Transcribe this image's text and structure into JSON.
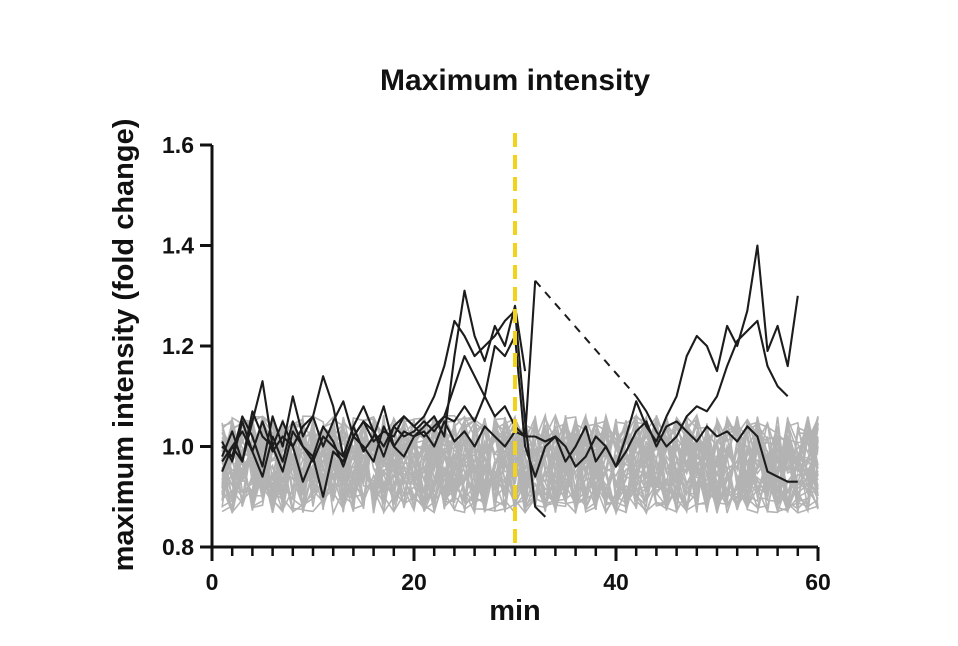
{
  "chart_data": {
    "type": "line",
    "title": "Maximum intensity",
    "xlabel": "min",
    "ylabel": "maximum intensity (fold change)",
    "xlim": [
      0,
      60
    ],
    "ylim": [
      0.8,
      1.6
    ],
    "x_ticks": [
      "0",
      "20",
      "40",
      "60"
    ],
    "y_ticks": [
      "0.8",
      "1.0",
      "1.2",
      "1.4",
      "1.6"
    ],
    "grid": false,
    "legend": "none",
    "colors": {
      "background_traces": "#b3b3b3",
      "highlight_traces": "#1c1c1c",
      "marker": "#f2d21b"
    },
    "vertical_marker": {
      "x": 30,
      "style": "dashed",
      "color": "#f2d21b"
    },
    "background_series": {
      "description": "about 40 gray single-cell traces fluctuating roughly between 0.85 and 1.08 across 1-60 min",
      "count": 40,
      "x_range": [
        1,
        60
      ],
      "value_range": [
        0.85,
        1.08
      ]
    },
    "series": [
      {
        "x": [
          1,
          2,
          3,
          4,
          5,
          6,
          7,
          8,
          9,
          10,
          11,
          12,
          13,
          14,
          15,
          16,
          17,
          18,
          19,
          20,
          21,
          22,
          23,
          24,
          25,
          26,
          27,
          28,
          29,
          30,
          31,
          32,
          33
        ],
        "values": [
          0.95,
          1.0,
          0.97,
          1.05,
          1.13,
          1.0,
          0.95,
          1.03,
          1.0,
          0.97,
          1.02,
          1.0,
          0.98,
          1.04,
          1.08,
          1.03,
          0.98,
          1.04,
          1.06,
          1.04,
          1.06,
          1.1,
          1.16,
          1.25,
          1.22,
          1.18,
          1.2,
          1.22,
          1.25,
          1.27,
          1.05,
          0.88,
          0.86
        ]
      },
      {
        "x": [
          1,
          2,
          3,
          4,
          5,
          6,
          7,
          8,
          9,
          10,
          11,
          12,
          13,
          14,
          15,
          16,
          17,
          18,
          19,
          20,
          21,
          22,
          23,
          24,
          25,
          26,
          27,
          28,
          29,
          30,
          31
        ],
        "values": [
          1.0,
          0.98,
          1.06,
          1.02,
          0.96,
          1.06,
          1.0,
          1.1,
          1.02,
          1.06,
          1.14,
          1.08,
          0.98,
          1.04,
          0.99,
          1.02,
          1.08,
          1.0,
          1.03,
          1.02,
          1.04,
          1.06,
          1.02,
          1.18,
          1.31,
          1.22,
          1.17,
          1.24,
          1.2,
          1.28,
          1.15
        ]
      },
      {
        "x": [
          1,
          2,
          3,
          4,
          5,
          6,
          7,
          8,
          9,
          10,
          11,
          12,
          13,
          14,
          15,
          16,
          17,
          18,
          19,
          20,
          21,
          22,
          23,
          24,
          25,
          26,
          27,
          28,
          29,
          30,
          31,
          32,
          33,
          34,
          35,
          36,
          37,
          38,
          39,
          40,
          41,
          42,
          43,
          44,
          45,
          46,
          47,
          48,
          49,
          50,
          51,
          52,
          53,
          54,
          55,
          56,
          57,
          58
        ],
        "values": [
          0.97,
          1.0,
          1.03,
          0.99,
          1.05,
          0.99,
          1.02,
          1.0,
          1.04,
          1.06,
          1.0,
          1.05,
          1.09,
          1.02,
          1.05,
          1.01,
          1.03,
          1.02,
          1.06,
          1.04,
          1.02,
          1.04,
          1.06,
          1.12,
          1.18,
          1.14,
          1.1,
          1.2,
          1.18,
          1.22,
          1.0,
          0.94,
          1.0,
          1.02,
          0.97,
          1.0,
          1.04,
          0.97,
          1.0,
          0.96,
          1.02,
          1.09,
          1.04,
          1.01,
          1.06,
          1.1,
          1.18,
          1.22,
          1.2,
          1.15,
          1.24,
          1.2,
          1.27,
          1.4,
          1.19,
          1.24,
          1.16,
          1.3
        ]
      },
      {
        "x": [
          1,
          2,
          3,
          4,
          5,
          6,
          7,
          8,
          9,
          10,
          11,
          12,
          13,
          14,
          15,
          16,
          17,
          18,
          19,
          20,
          21,
          22,
          23,
          24,
          25,
          26,
          27,
          28,
          29,
          30,
          31,
          32,
          33,
          34,
          35,
          36,
          37,
          38,
          39,
          40,
          41,
          42,
          43,
          44,
          45,
          46,
          47,
          48,
          49,
          50,
          51,
          52,
          53,
          54,
          55,
          56,
          57
        ],
        "values": [
          0.98,
          1.03,
          0.97,
          1.07,
          1.02,
          1.0,
          1.05,
          1.0,
          0.93,
          0.98,
          0.9,
          0.99,
          0.97,
          1.02,
          1.05,
          1.03,
          1.0,
          1.04,
          1.02,
          1.03,
          1.05,
          1.03,
          1.06,
          1.05,
          1.08,
          1.05,
          1.1,
          1.06,
          1.08,
          1.04,
          1.02,
          1.33,
          null,
          null,
          null,
          null,
          null,
          null,
          null,
          null,
          null,
          1.1,
          1.07,
          1.03,
          1.0,
          1.02,
          1.06,
          1.08,
          1.07,
          1.1,
          1.16,
          1.21,
          1.23,
          1.25,
          1.16,
          1.12,
          1.1
        ]
      },
      {
        "x": [
          1,
          2,
          3,
          4,
          5,
          6,
          7,
          8,
          9,
          10,
          11,
          12,
          13,
          14,
          15,
          16,
          17,
          18,
          19,
          20,
          21,
          22,
          23,
          24,
          25,
          26,
          27,
          28,
          29,
          30,
          31,
          32,
          33,
          34,
          35,
          36,
          37,
          38,
          39,
          40,
          41,
          42,
          43,
          44,
          45,
          46,
          47,
          48,
          49,
          50,
          51,
          52,
          53,
          54,
          55,
          56,
          57,
          58
        ],
        "values": [
          1.01,
          0.97,
          1.05,
          0.99,
          0.94,
          1.02,
          0.97,
          1.05,
          1.0,
          0.98,
          1.04,
          1.01,
          0.96,
          1.02,
          1.0,
          0.97,
          1.04,
          1.0,
          0.98,
          1.02,
          1.03,
          1.0,
          1.05,
          1.01,
          1.03,
          1.0,
          1.04,
          1.02,
          1.0,
          1.03,
          1.02,
          1.02,
          1.01,
          1.02,
          1.0,
          0.96,
          0.98,
          1.02,
          1.0,
          0.96,
          0.99,
          1.03,
          1.05,
          1.0,
          1.04,
          1.05,
          1.03,
          1.01,
          1.04,
          1.02,
          1.03,
          1.01,
          1.04,
          1.02,
          0.95,
          0.94,
          0.93,
          0.93
        ]
      }
    ],
    "dashed_gap_segment": {
      "x": [
        32,
        42
      ],
      "values": [
        1.33,
        1.1
      ]
    }
  }
}
